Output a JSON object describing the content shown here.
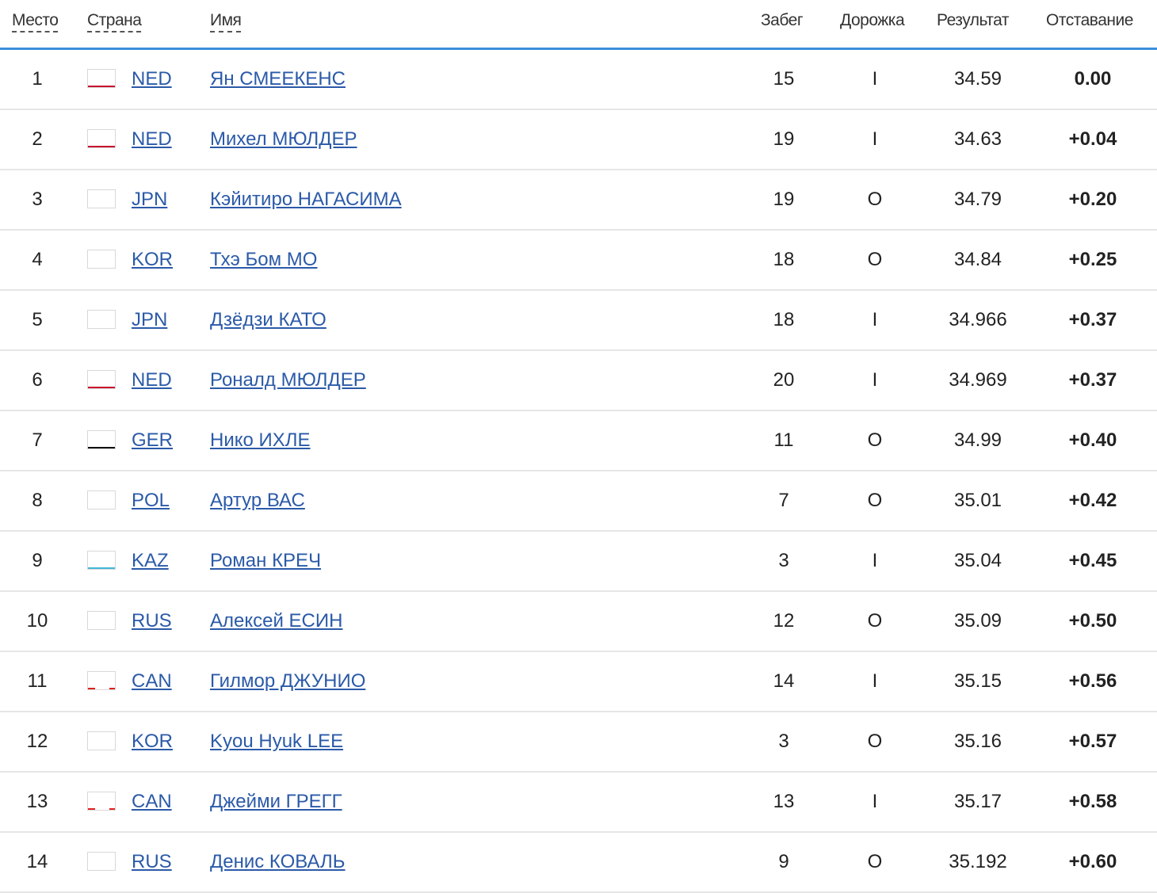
{
  "headers": {
    "place": "Место",
    "country": "Страна",
    "name": "Имя",
    "heat": "Забег",
    "lane": "Дорожка",
    "result": "Результат",
    "gap": "Отставание"
  },
  "rows": [
    {
      "place": "1",
      "flag": "NED",
      "country": "NED",
      "name": "Ян СМЕЕКЕНС",
      "heat": "15",
      "lane": "I",
      "result": "34.59",
      "gap": "0.00"
    },
    {
      "place": "2",
      "flag": "NED",
      "country": "NED",
      "name": "Михел МЮЛДЕР",
      "heat": "19",
      "lane": "I",
      "result": "34.63",
      "gap": "+0.04"
    },
    {
      "place": "3",
      "flag": "JPN",
      "country": "JPN",
      "name": "Кэйитиро НАГАСИМА",
      "heat": "19",
      "lane": "O",
      "result": "34.79",
      "gap": "+0.20"
    },
    {
      "place": "4",
      "flag": "KOR",
      "country": "KOR",
      "name": "Тхэ Бом МО",
      "heat": "18",
      "lane": "O",
      "result": "34.84",
      "gap": "+0.25"
    },
    {
      "place": "5",
      "flag": "JPN",
      "country": "JPN",
      "name": "Дзёдзи КАТО",
      "heat": "18",
      "lane": "I",
      "result": "34.966",
      "gap": "+0.37"
    },
    {
      "place": "6",
      "flag": "NED",
      "country": "NED",
      "name": "Роналд МЮЛДЕР",
      "heat": "20",
      "lane": "I",
      "result": "34.969",
      "gap": "+0.37"
    },
    {
      "place": "7",
      "flag": "GER",
      "country": "GER",
      "name": "Нико ИХЛЕ",
      "heat": "11",
      "lane": "O",
      "result": "34.99",
      "gap": "+0.40"
    },
    {
      "place": "8",
      "flag": "POL",
      "country": "POL",
      "name": "Артур ВАС",
      "heat": "7",
      "lane": "O",
      "result": "35.01",
      "gap": "+0.42"
    },
    {
      "place": "9",
      "flag": "KAZ",
      "country": "KAZ",
      "name": "Роман КРЕЧ",
      "heat": "3",
      "lane": "I",
      "result": "35.04",
      "gap": "+0.45"
    },
    {
      "place": "10",
      "flag": "RUS",
      "country": "RUS",
      "name": "Алексей ЕСИН",
      "heat": "12",
      "lane": "O",
      "result": "35.09",
      "gap": "+0.50"
    },
    {
      "place": "11",
      "flag": "CAN",
      "country": "CAN",
      "name": "Гилмор ДЖУНИО",
      "heat": "14",
      "lane": "I",
      "result": "35.15",
      "gap": "+0.56"
    },
    {
      "place": "12",
      "flag": "KOR",
      "country": "KOR",
      "name": "Kyou Hyuk LEE",
      "heat": "3",
      "lane": "O",
      "result": "35.16",
      "gap": "+0.57"
    },
    {
      "place": "13",
      "flag": "CAN",
      "country": "CAN",
      "name": "Джейми ГРЕГГ",
      "heat": "13",
      "lane": "I",
      "result": "35.17",
      "gap": "+0.58"
    },
    {
      "place": "14",
      "flag": "RUS",
      "country": "RUS",
      "name": "Денис КОВАЛЬ",
      "heat": "9",
      "lane": "O",
      "result": "35.192",
      "gap": "+0.60"
    }
  ]
}
